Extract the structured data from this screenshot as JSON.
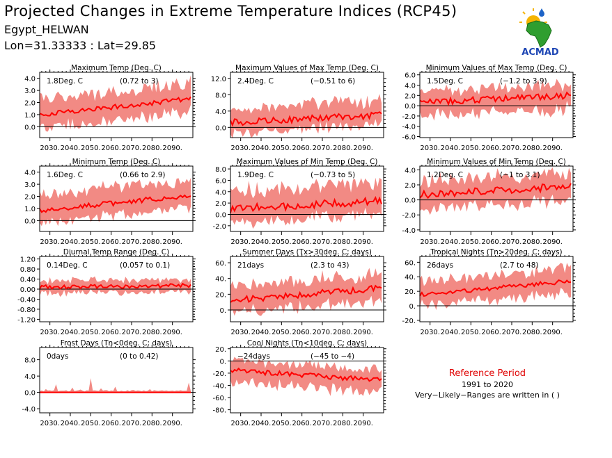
{
  "header": {
    "title": "Projected Changes in Extreme Temperature Indices (RCP45)",
    "station": "Egypt_HELWAN",
    "coords": "Lon=31.33333 : Lat=29.85"
  },
  "logo": {
    "text": "ACMAD",
    "icon": "africa-map-sun-logo"
  },
  "note": {
    "line1": "Reference Period",
    "line2": "1991 to 2020",
    "line3": "Very−Likely−Ranges are written in ( )"
  },
  "colors": {
    "band": "#f28a84",
    "line": "#ff0000",
    "zero": "#000000"
  },
  "chart_data": [
    {
      "type": "area",
      "title": "Maximum Temp (Deg. C)",
      "mean_label": "1.8Deg. C",
      "range_label": "(0.72 to 3)",
      "x_ticks": [
        "2030.",
        "2040.",
        "2050.",
        "2060.",
        "2070.",
        "2080.",
        "2090."
      ],
      "xlim": [
        2025,
        2100
      ],
      "y_ticks": [
        "0.0",
        "1.0",
        "2.0",
        "3.0",
        "4.0"
      ],
      "y_tick_values": [
        0,
        1,
        2,
        3,
        4
      ],
      "ylim": [
        -0.9,
        4.5
      ],
      "mean_start": 1.0,
      "mean_end": 2.3,
      "spread_low": 1.1,
      "spread_high": 1.3,
      "noise": 0.2,
      "series": "mean with very likely range"
    },
    {
      "type": "area",
      "title": "Maximum Values of Max Temp (Deg. C)",
      "mean_label": "2.4Deg. C",
      "range_label": "(−0.51 to 6)",
      "x_ticks": [
        "2030.",
        "2040.",
        "2050.",
        "2060.",
        "2070.",
        "2080.",
        "2090."
      ],
      "xlim": [
        2025,
        2100
      ],
      "y_ticks": [
        "0.0",
        "4.0",
        "8.0",
        "12.0"
      ],
      "y_tick_values": [
        0,
        4,
        8,
        12
      ],
      "ylim": [
        -2.5,
        13.5
      ],
      "mean_start": 1.2,
      "mean_end": 3.0,
      "spread_low": 2.4,
      "spread_high": 3.4,
      "noise": 0.8,
      "series": "mean with very likely range"
    },
    {
      "type": "area",
      "title": "Minimum Values of Max Temp (Deg. C)",
      "mean_label": "1.5Deg. C",
      "range_label": "(−1.2 to 3.9)",
      "x_ticks": [
        "2030.",
        "2040.",
        "2050.",
        "2060.",
        "2070.",
        "2080.",
        "2090."
      ],
      "xlim": [
        2025,
        2100
      ],
      "y_ticks": [
        "-6.0",
        "-4.0",
        "-2.0",
        "0.0",
        "2.0",
        "4.0",
        "6.0"
      ],
      "y_tick_values": [
        -6,
        -4,
        -2,
        0,
        2,
        4,
        6
      ],
      "ylim": [
        -6.2,
        6.5
      ],
      "mean_start": 0.6,
      "mean_end": 2.0,
      "spread_low": 2.5,
      "spread_high": 2.2,
      "noise": 0.6,
      "series": "mean with very likely range"
    },
    {
      "type": "area",
      "title": "Minimum Temp (Deg. C)",
      "mean_label": "1.6Deg. C",
      "range_label": "(0.66 to 2.9)",
      "x_ticks": [
        "2030.",
        "2040.",
        "2050.",
        "2060.",
        "2070.",
        "2080.",
        "2090."
      ],
      "xlim": [
        2025,
        2100
      ],
      "y_ticks": [
        "0.0",
        "1.0",
        "2.0",
        "3.0",
        "4.0"
      ],
      "y_tick_values": [
        0,
        1,
        2,
        3,
        4
      ],
      "ylim": [
        -0.9,
        4.5
      ],
      "mean_start": 0.8,
      "mean_end": 2.1,
      "spread_low": 1.0,
      "spread_high": 1.3,
      "noise": 0.2,
      "series": "mean with very likely range"
    },
    {
      "type": "area",
      "title": "Maximum Values of Min Temp (Deg. C)",
      "mean_label": "1.9Deg. C",
      "range_label": "(−0.73 to 5)",
      "x_ticks": [
        "2030.",
        "2040.",
        "2050.",
        "2060.",
        "2070.",
        "2080.",
        "2090."
      ],
      "xlim": [
        2025,
        2100
      ],
      "y_ticks": [
        "-2.0",
        "0.0",
        "2.0",
        "4.0",
        "6.0",
        "8.0"
      ],
      "y_tick_values": [
        -2,
        0,
        2,
        4,
        6,
        8
      ],
      "ylim": [
        -3.0,
        8.5
      ],
      "mean_start": 1.0,
      "mean_end": 2.4,
      "spread_low": 2.3,
      "spread_high": 3.2,
      "noise": 0.7,
      "series": "mean with very likely range"
    },
    {
      "type": "area",
      "title": "Minimum Values of Min Temp (Deg. C)",
      "mean_label": "1.2Deg. C",
      "range_label": "(−1 to 3.1)",
      "x_ticks": [
        "2030.",
        "2040.",
        "2050.",
        "2060.",
        "2070.",
        "2080.",
        "2090."
      ],
      "xlim": [
        2025,
        2100
      ],
      "y_ticks": [
        "-4.0",
        "-2.0",
        "0.0",
        "2.0",
        "4.0"
      ],
      "y_tick_values": [
        -4,
        -2,
        0,
        2,
        4
      ],
      "ylim": [
        -4.2,
        4.5
      ],
      "mean_start": 0.7,
      "mean_end": 1.8,
      "spread_low": 1.9,
      "spread_high": 1.9,
      "noise": 0.5,
      "series": "mean with very likely range"
    },
    {
      "type": "area",
      "title": "Diurnal Temp Range (Deg. C)",
      "mean_label": "0.14Deg. C",
      "range_label": "(0.057 to 0.1)",
      "x_ticks": [
        "2030.",
        "2040.",
        "2050.",
        "2060.",
        "2070.",
        "2080.",
        "2090."
      ],
      "xlim": [
        2025,
        2100
      ],
      "y_ticks": [
        "-1.20",
        "-0.80",
        "-0.40",
        "0.00",
        "0.40",
        "0.80",
        "1.20"
      ],
      "y_tick_values": [
        -1.2,
        -0.8,
        -0.4,
        0,
        0.4,
        0.8,
        1.2
      ],
      "ylim": [
        -1.3,
        1.3
      ],
      "mean_start": 0.08,
      "mean_end": 0.15,
      "spread_low": 0.25,
      "spread_high": 0.25,
      "noise": 0.08,
      "series": "mean with very likely range"
    },
    {
      "type": "area",
      "title": "Summer Days (Tx>30deg. C; days)",
      "mean_label": "21days",
      "range_label": "(2.3 to 43)",
      "x_ticks": [
        "2030.",
        "2040.",
        "2050.",
        "2060.",
        "2070.",
        "2080.",
        "2090."
      ],
      "xlim": [
        2025,
        2100
      ],
      "y_ticks": [
        "0.",
        "20.",
        "40.",
        "60."
      ],
      "y_tick_values": [
        0,
        20,
        40,
        60
      ],
      "ylim": [
        -15,
        68
      ],
      "mean_start": 12,
      "mean_end": 28,
      "spread_low": 16,
      "spread_high": 18,
      "noise": 4,
      "series": "mean with very likely range"
    },
    {
      "type": "area",
      "title": "Tropical Nights (Tn>20deg. C; days)",
      "mean_label": "26days",
      "range_label": "(2.7 to 48)",
      "x_ticks": [
        "2030.",
        "2040.",
        "2050.",
        "2060.",
        "2070.",
        "2080.",
        "2090."
      ],
      "xlim": [
        2025,
        2100
      ],
      "y_ticks": [
        "-20.",
        "0.",
        "20.",
        "40.",
        "60."
      ],
      "y_tick_values": [
        -20,
        0,
        20,
        40,
        60
      ],
      "ylim": [
        -22,
        68
      ],
      "mean_start": 15,
      "mean_end": 34,
      "spread_low": 16,
      "spread_high": 18,
      "noise": 3,
      "series": "mean with very likely range"
    },
    {
      "type": "area",
      "title": "Frost Days (Tn<0deg. C; days)",
      "mean_label": "0days",
      "range_label": "(0 to 0.42)",
      "x_ticks": [
        "2030.",
        "2040.",
        "2050.",
        "2060.",
        "2070.",
        "2080.",
        "2090."
      ],
      "xlim": [
        2025,
        2100
      ],
      "y_ticks": [
        "-4.0",
        "0.0",
        "4.0",
        "8.0"
      ],
      "y_tick_values": [
        -4,
        0,
        4,
        8
      ],
      "ylim": [
        -5,
        11
      ],
      "mean_start": 0,
      "mean_end": 0,
      "spread_low": 0,
      "spread_high": 0.4,
      "noise": 0,
      "series": "mean with very likely range"
    },
    {
      "type": "area",
      "title": "Cool Nights (Tn<10deg. C; days)",
      "mean_label": "−24days",
      "range_label": "(−45 to −4)",
      "x_ticks": [
        "2030.",
        "2040.",
        "2050.",
        "2060.",
        "2070.",
        "2080.",
        "2090."
      ],
      "xlim": [
        2025,
        2100
      ],
      "y_ticks": [
        "-80.",
        "-60.",
        "-40.",
        "-20.",
        "0.",
        "20."
      ],
      "y_tick_values": [
        -80,
        -60,
        -40,
        -20,
        0,
        20
      ],
      "ylim": [
        -85,
        22
      ],
      "mean_start": -15,
      "mean_end": -32,
      "spread_low": 20,
      "spread_high": 16,
      "noise": 4,
      "series": "mean with very likely range"
    }
  ]
}
